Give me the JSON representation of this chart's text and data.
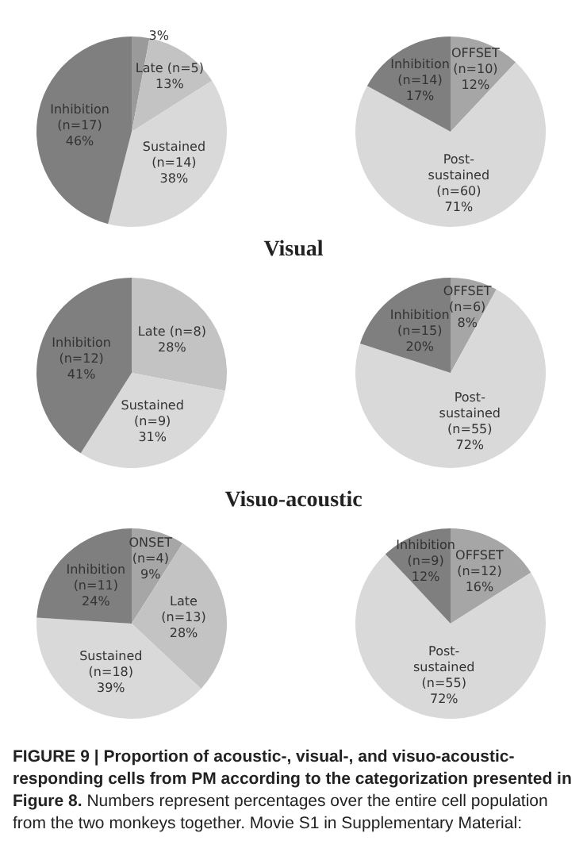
{
  "chart_data": [
    {
      "type": "pie",
      "categories": [
        null,
        "Late (n=5)",
        "Sustained (n=14)",
        "Inhibition (n=17)"
      ],
      "values": [
        3,
        13,
        38,
        46
      ],
      "value_labels": [
        "3%",
        "13%",
        "38%",
        "46%"
      ],
      "colors": [
        "#9a9a9a",
        "#c3c3c3",
        "#d9d9d9",
        "#7f7f7f"
      ]
    },
    {
      "type": "pie",
      "categories": [
        "OFFSET (n=10)",
        "Post-sustained (n=60)",
        "Inhibition (n=14)"
      ],
      "values": [
        12,
        71,
        17
      ],
      "value_labels": [
        "12%",
        "71%",
        "17%"
      ],
      "colors": [
        "#a6a6a6",
        "#d9d9d9",
        "#7f7f7f"
      ]
    },
    {
      "type": "pie",
      "title": "Visual",
      "categories": [
        "Late (n=8)",
        "Sustained (n=9)",
        "Inhibition (n=12)"
      ],
      "values": [
        28,
        31,
        41
      ],
      "value_labels": [
        "28%",
        "31%",
        "41%"
      ],
      "colors": [
        "#c3c3c3",
        "#d9d9d9",
        "#7f7f7f"
      ]
    },
    {
      "type": "pie",
      "categories": [
        "OFFSET (n=6)",
        "Post-sustained (n=55)",
        "Inhibition (n=15)"
      ],
      "values": [
        8,
        72,
        20
      ],
      "value_labels": [
        "8%",
        "72%",
        "20%"
      ],
      "colors": [
        "#a6a6a6",
        "#d9d9d9",
        "#7f7f7f"
      ]
    },
    {
      "type": "pie",
      "title": "Visuo-acoustic",
      "categories": [
        "ONSET (n=4)",
        "Late (n=13)",
        "Sustained (n=18)",
        "Inhibition (n=11)"
      ],
      "values": [
        9,
        28,
        39,
        24
      ],
      "value_labels": [
        "9%",
        "28%",
        "39%",
        "24%"
      ],
      "colors": [
        "#a6a6a6",
        "#c3c3c3",
        "#d9d9d9",
        "#7f7f7f"
      ]
    },
    {
      "type": "pie",
      "categories": [
        "OFFSET (n=12)",
        "Post-sustained (n=55)",
        "Inhibition (n=9)"
      ],
      "values": [
        16,
        72,
        12
      ],
      "value_labels": [
        "16%",
        "72%",
        "12%"
      ],
      "colors": [
        "#a6a6a6",
        "#d9d9d9",
        "#7f7f7f"
      ],
      "annotations": [
        "FIGURE 9 | Proportion of acoustic-, visual-, and visuo-acoustic-responding cells from PM according to the categorization presented in Figure 8.",
        "Numbers represent percentages over the entire cell population from the two monkeys together. Movie S1 in Supplementary Material:"
      ]
    }
  ]
}
